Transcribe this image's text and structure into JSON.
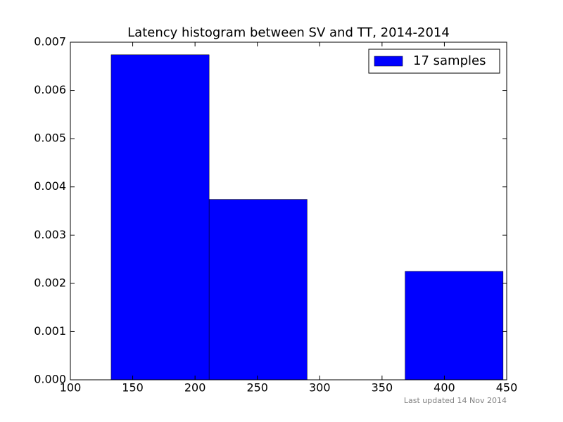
{
  "chart_data": {
    "type": "histogram",
    "title": "Latency histogram between SV and TT, 2014-2014",
    "bins": [
      132.7,
      211.3,
      289.9,
      368.5,
      447.1
    ],
    "series": [
      {
        "name": "17 samples",
        "color": "#0000ff",
        "values": [
          0.00674,
          0.00374,
          0,
          0.00225
        ]
      }
    ],
    "xlim": [
      100,
      450
    ],
    "xticks": [
      100,
      150,
      200,
      250,
      300,
      350,
      400,
      450
    ],
    "ylim": [
      0,
      0.007
    ],
    "yticks": [
      {
        "value": 0,
        "label": "0.000"
      },
      {
        "value": 0.001,
        "label": "0.001"
      },
      {
        "value": 0.002,
        "label": "0.002"
      },
      {
        "value": 0.003,
        "label": "0.003"
      },
      {
        "value": 0.004,
        "label": "0.004"
      },
      {
        "value": 0.005,
        "label": "0.005"
      },
      {
        "value": 0.006,
        "label": "0.006"
      },
      {
        "value": 0.007,
        "label": "0.007"
      }
    ],
    "legend": "upper right",
    "footnote": "Last updated 14 Nov 2014"
  }
}
